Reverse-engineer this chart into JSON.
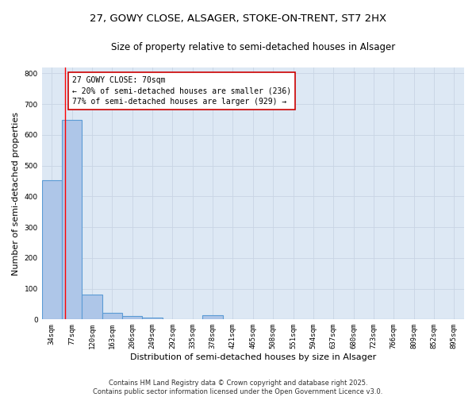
{
  "title_line1": "27, GOWY CLOSE, ALSAGER, STOKE-ON-TRENT, ST7 2HX",
  "title_line2": "Size of property relative to semi-detached houses in Alsager",
  "xlabel": "Distribution of semi-detached houses by size in Alsager",
  "ylabel": "Number of semi-detached properties",
  "categories": [
    "34sqm",
    "77sqm",
    "120sqm",
    "163sqm",
    "206sqm",
    "249sqm",
    "292sqm",
    "335sqm",
    "378sqm",
    "421sqm",
    "465sqm",
    "508sqm",
    "551sqm",
    "594sqm",
    "637sqm",
    "680sqm",
    "723sqm",
    "766sqm",
    "809sqm",
    "852sqm",
    "895sqm"
  ],
  "values": [
    453,
    648,
    80,
    22,
    10,
    5,
    0,
    0,
    15,
    0,
    0,
    0,
    0,
    0,
    0,
    0,
    0,
    0,
    0,
    0,
    0
  ],
  "bar_color": "#aec6e8",
  "bar_edge_color": "#5b9bd5",
  "bar_linewidth": 0.8,
  "red_line_x": 0.65,
  "annotation_title": "27 GOWY CLOSE: 70sqm",
  "annotation_line2": "← 20% of semi-detached houses are smaller (236)",
  "annotation_line3": "77% of semi-detached houses are larger (929) →",
  "annotation_box_color": "#ffffff",
  "annotation_box_edgecolor": "#cc0000",
  "ylim": [
    0,
    820
  ],
  "yticks": [
    0,
    100,
    200,
    300,
    400,
    500,
    600,
    700,
    800
  ],
  "grid_color": "#c8d4e4",
  "background_color": "#dde8f4",
  "footer_line1": "Contains HM Land Registry data © Crown copyright and database right 2025.",
  "footer_line2": "Contains public sector information licensed under the Open Government Licence v3.0.",
  "title_fontsize": 9.5,
  "subtitle_fontsize": 8.5,
  "axis_label_fontsize": 8,
  "tick_fontsize": 6.5,
  "annotation_fontsize": 7,
  "footer_fontsize": 6
}
